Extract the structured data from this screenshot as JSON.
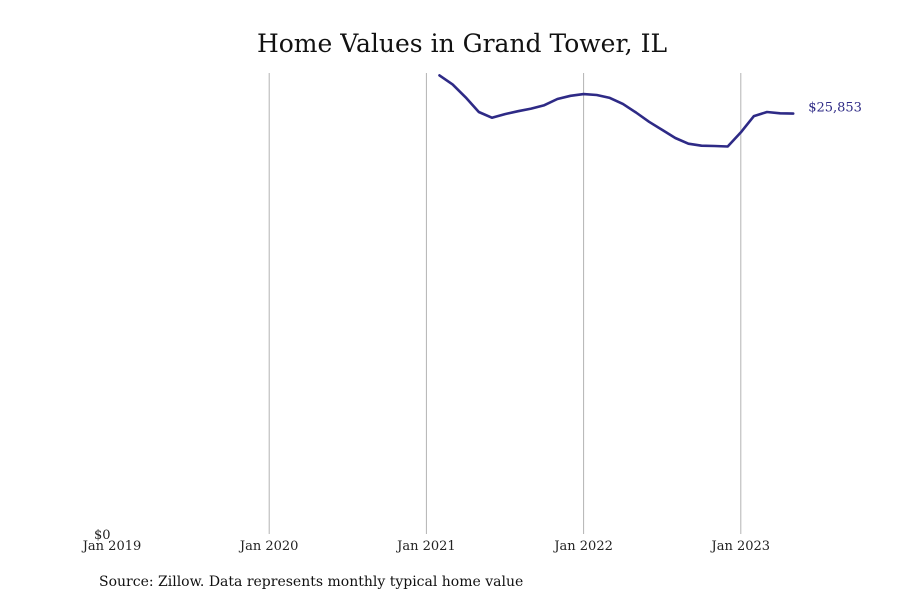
{
  "chart_data": {
    "type": "line",
    "title": "Home Values in Grand Tower, IL",
    "source": "Source: Zillow. Data represents monthly typical home value",
    "xlabel": "",
    "ylabel": "",
    "x_ticks": [
      "Jan 2019",
      "Jan 2020",
      "Jan 2021",
      "Jan 2022",
      "Jan 2023"
    ],
    "y_ticks": [
      "$0"
    ],
    "grid": "vertical",
    "legend": "none",
    "last_value_label": "$25,853",
    "line_color": "#2e2a86",
    "series": [
      {
        "x": [
          "2021-02",
          "2021-03",
          "2021-04",
          "2021-05",
          "2021-06",
          "2021-07",
          "2021-08",
          "2021-09",
          "2021-10",
          "2021-11",
          "2021-12",
          "2022-01",
          "2022-02",
          "2022-03",
          "2022-04",
          "2022-05",
          "2022-06",
          "2022-07",
          "2022-08",
          "2022-09",
          "2022-10",
          "2022-11",
          "2022-12",
          "2023-01",
          "2023-02",
          "2023-03",
          "2023-04",
          "2023-05"
        ],
        "values": [
          28200,
          27650,
          26850,
          25950,
          25600,
          25820,
          26000,
          26160,
          26370,
          26750,
          26950,
          27050,
          27000,
          26820,
          26450,
          25920,
          25350,
          24850,
          24350,
          24000,
          23880,
          23860,
          23830,
          24700,
          25700,
          25950,
          25870,
          25853
        ]
      }
    ]
  }
}
